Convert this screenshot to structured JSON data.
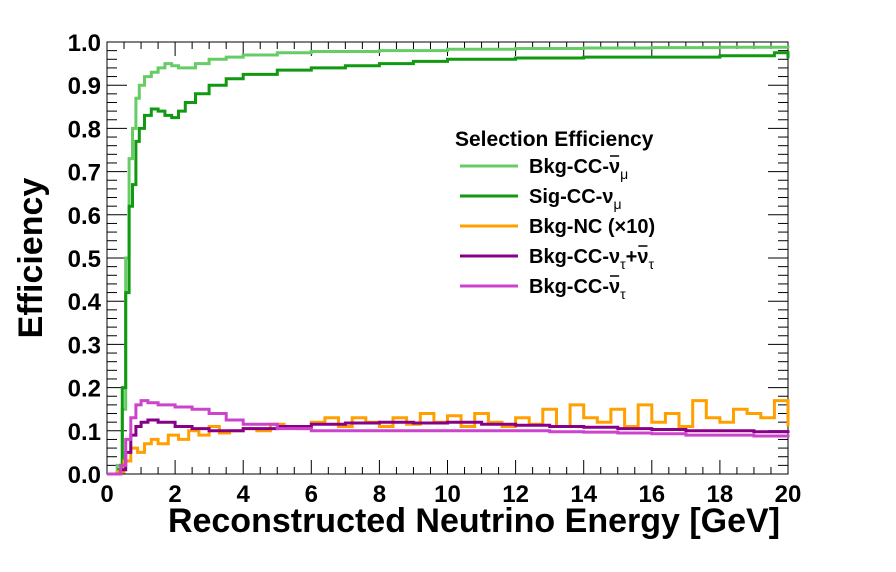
{
  "chart_data": {
    "type": "line",
    "xlabel": "Reconstructed Neutrino Energy [GeV]",
    "ylabel": "Efficiency",
    "xlim": [
      0,
      20
    ],
    "ylim": [
      0,
      1
    ],
    "x_ticks": [
      "0",
      "2",
      "4",
      "6",
      "8",
      "10",
      "12",
      "14",
      "16",
      "18",
      "20"
    ],
    "y_ticks": [
      "0.0",
      "0.1",
      "0.2",
      "0.3",
      "0.4",
      "0.5",
      "0.6",
      "0.7",
      "0.8",
      "0.9",
      "1.0"
    ],
    "legend": {
      "title": "Selection Efficiency",
      "placement": "right-center",
      "entries": [
        {
          "main": "Bkg-CC-ν",
          "bar": true,
          "sub": "μ",
          "rest": "",
          "sub2": "",
          "color": "#66cc66"
        },
        {
          "main": "Sig-CC-ν",
          "bar": false,
          "sub": "μ",
          "rest": "",
          "sub2": "",
          "color": "#119911"
        },
        {
          "main": "Bkg-NC (×10)",
          "bar": false,
          "sub": "",
          "rest": "",
          "sub2": "",
          "color": "#ffa000"
        },
        {
          "main": "Bkg-CC-ν",
          "bar": false,
          "sub": "τ",
          "rest": "+ν",
          "rest_bar": true,
          "sub2": "τ",
          "color": "#880088"
        },
        {
          "main": "Bkg-CC-ν",
          "bar": true,
          "sub": "τ",
          "rest": "",
          "sub2": "",
          "color": "#cc44cc"
        }
      ]
    },
    "series": [
      {
        "name": "Bkg-CC-ν̄μ",
        "color": "#66cc66",
        "x": [
          0,
          0.3,
          0.45,
          0.55,
          0.65,
          0.75,
          0.85,
          0.95,
          1.1,
          1.3,
          1.5,
          1.7,
          1.9,
          2.1,
          2.3,
          2.6,
          3.0,
          3.5,
          4.0,
          5.0,
          6.0,
          8.0,
          10.0,
          12.0,
          14.0,
          16.0,
          18.0,
          20.0
        ],
        "y": [
          0,
          0.02,
          0.15,
          0.5,
          0.73,
          0.8,
          0.87,
          0.9,
          0.92,
          0.93,
          0.94,
          0.95,
          0.945,
          0.94,
          0.94,
          0.95,
          0.96,
          0.965,
          0.97,
          0.975,
          0.978,
          0.98,
          0.983,
          0.985,
          0.986,
          0.987,
          0.988,
          0.985
        ]
      },
      {
        "name": "Sig-CC-νμ",
        "color": "#119911",
        "x": [
          0,
          0.35,
          0.45,
          0.55,
          0.65,
          0.75,
          0.85,
          0.95,
          1.1,
          1.3,
          1.5,
          1.7,
          1.9,
          2.1,
          2.3,
          2.6,
          3.0,
          3.5,
          4.0,
          5.0,
          6.0,
          7.0,
          8.0,
          9.0,
          10.0,
          12.0,
          14.0,
          16.0,
          18.0,
          19.6,
          20.0
        ],
        "y": [
          0,
          0.01,
          0.2,
          0.42,
          0.62,
          0.67,
          0.77,
          0.8,
          0.83,
          0.845,
          0.84,
          0.83,
          0.825,
          0.84,
          0.86,
          0.88,
          0.9,
          0.915,
          0.925,
          0.935,
          0.94,
          0.945,
          0.95,
          0.955,
          0.96,
          0.963,
          0.965,
          0.965,
          0.968,
          0.975,
          0.962
        ]
      },
      {
        "name": "Bkg-NC (×10)",
        "color": "#ffa000",
        "x": [
          0,
          0.3,
          0.5,
          0.7,
          0.9,
          1.1,
          1.3,
          1.5,
          1.8,
          2.1,
          2.4,
          2.7,
          3.0,
          3.3,
          3.6,
          4.0,
          4.4,
          4.8,
          5.2,
          5.6,
          6.0,
          6.4,
          6.8,
          7.2,
          7.6,
          8.0,
          8.4,
          8.8,
          9.2,
          9.6,
          10.0,
          10.4,
          10.8,
          11.2,
          11.6,
          12.0,
          12.4,
          12.8,
          13.2,
          13.6,
          14.0,
          14.4,
          14.8,
          15.2,
          15.6,
          16.0,
          16.4,
          16.8,
          17.2,
          17.6,
          18.0,
          18.4,
          18.8,
          19.2,
          19.6,
          20.0
        ],
        "y": [
          0,
          0.005,
          0.03,
          0.06,
          0.05,
          0.07,
          0.08,
          0.07,
          0.09,
          0.08,
          0.1,
          0.09,
          0.11,
          0.095,
          0.1,
          0.105,
          0.1,
          0.115,
          0.11,
          0.105,
          0.12,
          0.13,
          0.11,
          0.13,
          0.12,
          0.11,
          0.13,
          0.115,
          0.14,
          0.12,
          0.135,
          0.11,
          0.14,
          0.12,
          0.11,
          0.13,
          0.115,
          0.15,
          0.11,
          0.16,
          0.13,
          0.12,
          0.15,
          0.11,
          0.16,
          0.12,
          0.14,
          0.11,
          0.17,
          0.13,
          0.12,
          0.15,
          0.14,
          0.13,
          0.17,
          0.11
        ]
      },
      {
        "name": "Bkg-CC-ντ+ν̄τ",
        "color": "#880088",
        "x": [
          0,
          0.4,
          0.55,
          0.7,
          0.85,
          1.0,
          1.2,
          1.5,
          2.0,
          2.5,
          3.0,
          3.5,
          4.0,
          5.0,
          6.0,
          7.0,
          8.0,
          9.0,
          10.0,
          11.0,
          12.0,
          13.0,
          14.0,
          15.0,
          16.0,
          17.0,
          18.0,
          19.0,
          20.0
        ],
        "y": [
          0,
          0.01,
          0.05,
          0.09,
          0.11,
          0.12,
          0.125,
          0.12,
          0.11,
          0.105,
          0.1,
          0.1,
          0.105,
          0.11,
          0.115,
          0.118,
          0.12,
          0.118,
          0.12,
          0.115,
          0.113,
          0.11,
          0.108,
          0.105,
          0.103,
          0.1,
          0.1,
          0.098,
          0.095
        ]
      },
      {
        "name": "Bkg-CC-ν̄τ",
        "color": "#cc44cc",
        "x": [
          0,
          0.4,
          0.55,
          0.7,
          0.85,
          1.0,
          1.2,
          1.5,
          2.0,
          2.5,
          3.0,
          3.5,
          4.0,
          5.0,
          6.0,
          7.0,
          8.0,
          9.0,
          10.0,
          11.0,
          12.0,
          13.0,
          14.0,
          15.0,
          16.0,
          17.0,
          18.0,
          19.0,
          20.0
        ],
        "y": [
          0,
          0.02,
          0.08,
          0.13,
          0.16,
          0.17,
          0.165,
          0.16,
          0.155,
          0.15,
          0.14,
          0.125,
          0.115,
          0.105,
          0.1,
          0.1,
          0.1,
          0.1,
          0.1,
          0.1,
          0.1,
          0.098,
          0.097,
          0.095,
          0.093,
          0.09,
          0.09,
          0.088,
          0.085
        ]
      }
    ]
  }
}
